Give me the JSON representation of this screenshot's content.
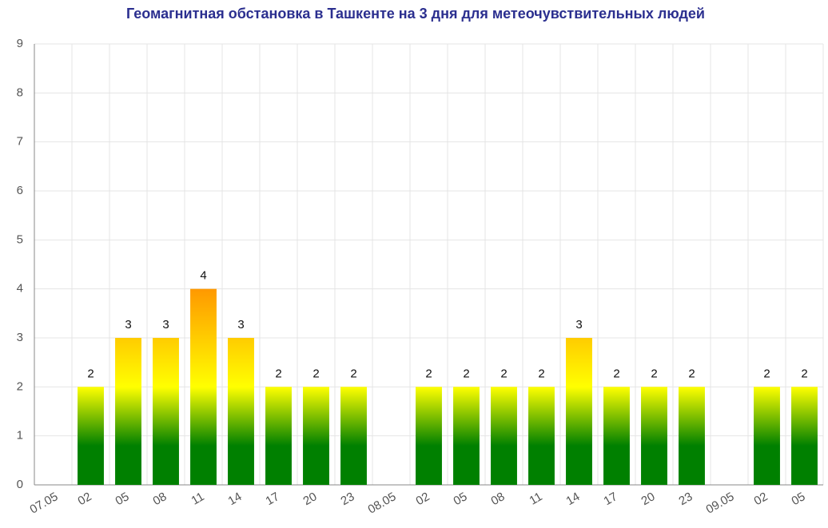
{
  "chart_data": {
    "type": "bar",
    "title": "Геомагнитная обстановка в Ташкенте на 3 дня для метеочувствительных людей",
    "categories": [
      "07.05",
      "02",
      "05",
      "08",
      "11",
      "14",
      "17",
      "20",
      "23",
      "08.05",
      "02",
      "05",
      "08",
      "11",
      "14",
      "17",
      "20",
      "23",
      "09.05",
      "02",
      "05"
    ],
    "values": [
      null,
      2,
      3,
      3,
      4,
      3,
      2,
      2,
      2,
      null,
      2,
      2,
      2,
      2,
      3,
      2,
      2,
      2,
      null,
      2,
      2
    ],
    "ylim": [
      0,
      9
    ],
    "yticks": [
      0,
      1,
      2,
      3,
      4,
      5,
      6,
      7,
      8,
      9
    ],
    "grid": true
  }
}
